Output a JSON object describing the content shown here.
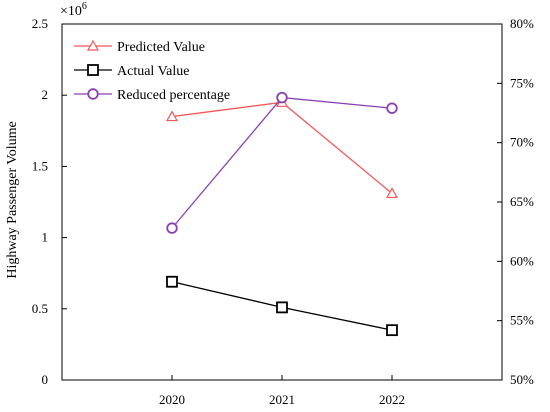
{
  "chart_data": {
    "type": "line",
    "ylabel": "Highway Passenger Volume",
    "y_multiplier": "×10",
    "y_multiplier_exp": "6",
    "categories": [
      "2020",
      "2021",
      "2022"
    ],
    "ylim": [
      0,
      2.5
    ],
    "yticks": [
      "0",
      "0.5",
      "1",
      "1.5",
      "2",
      "2.5"
    ],
    "y2lim": [
      50,
      80
    ],
    "y2ticks": [
      "50%",
      "55%",
      "60%",
      "65%",
      "70%",
      "75%",
      "80%"
    ],
    "grid": false,
    "legend_position": "top-left",
    "series": [
      {
        "name": "Predicted Value",
        "axis": "left",
        "marker": "triangle",
        "color": "#f25858",
        "values": [
          1.85,
          1.95,
          1.31
        ]
      },
      {
        "name": "Actual Value",
        "axis": "left",
        "marker": "square",
        "color": "#000000",
        "values": [
          0.69,
          0.51,
          0.35
        ]
      },
      {
        "name": "Reduced percentage",
        "axis": "right",
        "marker": "circle",
        "color": "#8a3fb2",
        "values": [
          62.8,
          73.8,
          72.9
        ]
      }
    ]
  }
}
